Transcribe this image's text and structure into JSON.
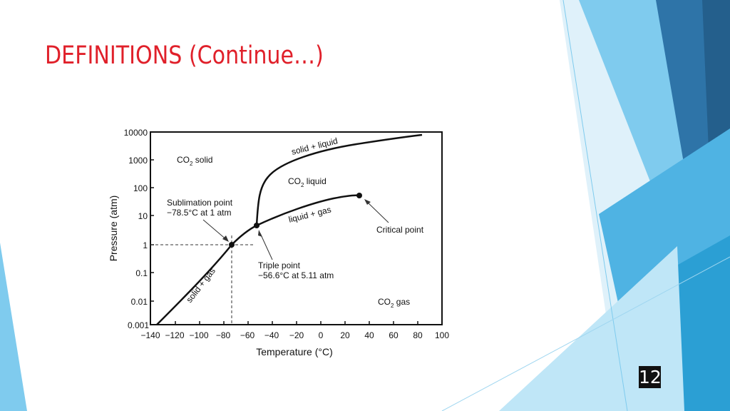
{
  "slide": {
    "title": "DEFINITIONS (Continue…)",
    "number": "12",
    "accent_color": "#e0202a"
  },
  "diagram": {
    "y_axis_title": "Pressure (atm)",
    "x_axis_title": "Temperature (°C)",
    "y_ticks": [
      "10000",
      "1000",
      "100",
      "10",
      "1",
      "0.1",
      "0.01",
      "0.001"
    ],
    "x_ticks": [
      "−140",
      "−120",
      "−100",
      "−80",
      "−60",
      "−40",
      "−20",
      "0",
      "20",
      "40",
      "60",
      "80",
      "100"
    ],
    "regions": {
      "solid_prefix": "CO",
      "solid_sub": "2",
      "solid_suffix": " solid",
      "liquid_prefix": "CO",
      "liquid_sub": "2",
      "liquid_suffix": " liquid",
      "gas_prefix": "CO",
      "gas_sub": "2",
      "gas_suffix": " gas"
    },
    "curve_labels": {
      "solid_liquid": "solid + liquid",
      "liquid_gas": "liquid + gas",
      "solid_gas": "solid + gas"
    },
    "annotations": {
      "sublimation_line1": "Sublimation point",
      "sublimation_line2": "−78.5°C at 1 atm",
      "triple_line1": "Triple point",
      "triple_line2": "−56.6°C at 5.11 atm",
      "critical": "Critical point"
    },
    "points": [
      {
        "name": "sublimation point",
        "temperature_c": -78.5,
        "pressure_atm": 1
      },
      {
        "name": "triple point",
        "temperature_c": -56.6,
        "pressure_atm": 5.11
      },
      {
        "name": "critical point",
        "temperature_c": 31,
        "pressure_atm": 73
      }
    ]
  }
}
